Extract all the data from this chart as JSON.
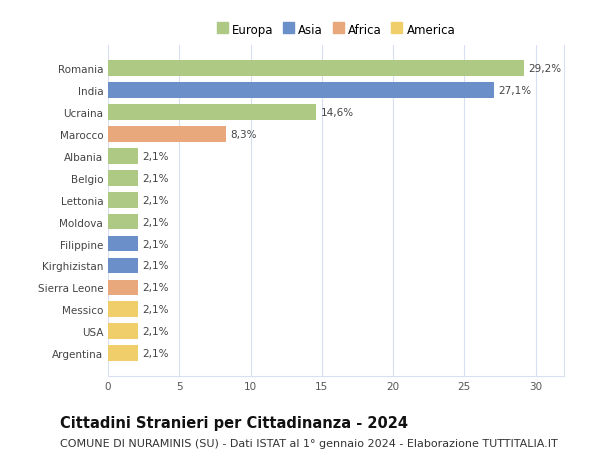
{
  "categories": [
    "Romania",
    "India",
    "Ucraina",
    "Marocco",
    "Albania",
    "Belgio",
    "Lettonia",
    "Moldova",
    "Filippine",
    "Kirghizistan",
    "Sierra Leone",
    "Messico",
    "USA",
    "Argentina"
  ],
  "values": [
    29.2,
    27.1,
    14.6,
    8.3,
    2.1,
    2.1,
    2.1,
    2.1,
    2.1,
    2.1,
    2.1,
    2.1,
    2.1,
    2.1
  ],
  "labels": [
    "29,2%",
    "27,1%",
    "14,6%",
    "8,3%",
    "2,1%",
    "2,1%",
    "2,1%",
    "2,1%",
    "2,1%",
    "2,1%",
    "2,1%",
    "2,1%",
    "2,1%",
    "2,1%"
  ],
  "continents": [
    "Europa",
    "Asia",
    "Europa",
    "Africa",
    "Europa",
    "Europa",
    "Europa",
    "Europa",
    "Asia",
    "Asia",
    "Africa",
    "America",
    "America",
    "America"
  ],
  "continent_colors": {
    "Europa": "#adc984",
    "Asia": "#6b8fc9",
    "Africa": "#e8a87c",
    "America": "#f0ce6a"
  },
  "legend_order": [
    "Europa",
    "Asia",
    "Africa",
    "America"
  ],
  "title": "Cittadini Stranieri per Cittadinanza - 2024",
  "subtitle": "COMUNE DI NURAMINIS (SU) - Dati ISTAT al 1° gennaio 2024 - Elaborazione TUTTITALIA.IT",
  "xlim": [
    0,
    32
  ],
  "xticks": [
    0,
    5,
    10,
    15,
    20,
    25,
    30
  ],
  "background_color": "#ffffff",
  "grid_color": "#d8dff0",
  "bar_height": 0.72,
  "title_fontsize": 10.5,
  "subtitle_fontsize": 8,
  "label_fontsize": 7.5,
  "tick_fontsize": 7.5,
  "legend_fontsize": 8.5
}
